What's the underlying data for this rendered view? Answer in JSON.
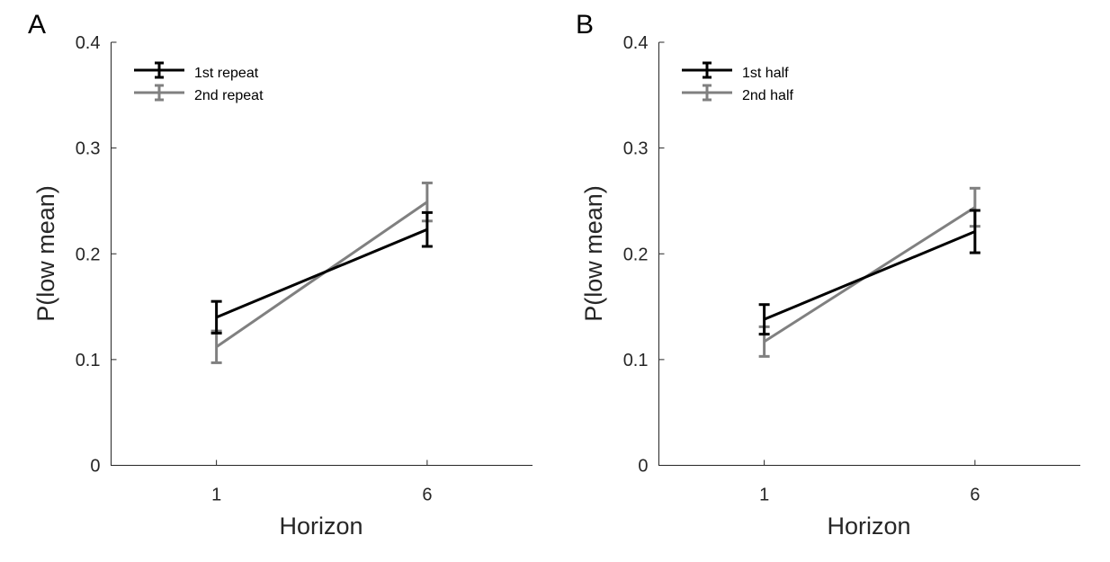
{
  "chart_data": [
    {
      "panel": "A",
      "type": "line",
      "x": [
        1,
        6
      ],
      "xlim": [
        -1.5,
        8.5
      ],
      "xticks": [
        1,
        6
      ],
      "xlabel": "Horizon",
      "ylabel": "P(low mean)",
      "ylim": [
        0,
        0.4
      ],
      "yticks": [
        0,
        0.1,
        0.2,
        0.3,
        0.4
      ],
      "yticklabels": [
        "0",
        "0.1",
        "0.2",
        "0.3",
        "0.4"
      ],
      "grid": false,
      "legend_position": "top-left",
      "series": [
        {
          "name": "1st repeat",
          "color": "#000000",
          "values": [
            0.14,
            0.223
          ],
          "error": [
            0.015,
            0.016
          ]
        },
        {
          "name": "2nd repeat",
          "color": "#808080",
          "values": [
            0.112,
            0.249
          ],
          "error": [
            0.015,
            0.018
          ]
        }
      ]
    },
    {
      "panel": "B",
      "type": "line",
      "x": [
        1,
        6
      ],
      "xlim": [
        -1.5,
        8.5
      ],
      "xticks": [
        1,
        6
      ],
      "xlabel": "Horizon",
      "ylabel": "P(low mean)",
      "ylim": [
        0,
        0.4
      ],
      "yticks": [
        0,
        0.1,
        0.2,
        0.3,
        0.4
      ],
      "yticklabels": [
        "0",
        "0.1",
        "0.2",
        "0.3",
        "0.4"
      ],
      "grid": false,
      "legend_position": "top-left",
      "series": [
        {
          "name": "1st half",
          "color": "#000000",
          "values": [
            0.138,
            0.221
          ],
          "error": [
            0.014,
            0.02
          ]
        },
        {
          "name": "2nd half",
          "color": "#808080",
          "values": [
            0.117,
            0.244
          ],
          "error": [
            0.014,
            0.018
          ]
        }
      ]
    }
  ]
}
